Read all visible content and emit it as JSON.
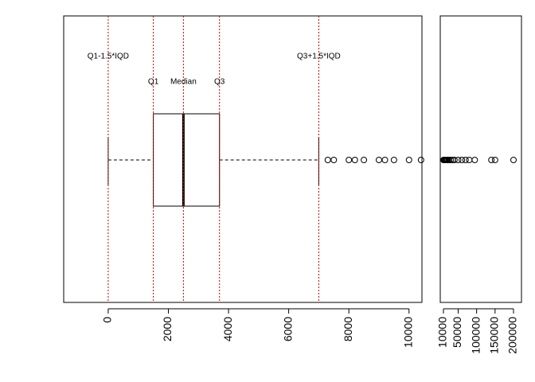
{
  "chart_data": [
    {
      "type": "boxplot",
      "stats": {
        "whisker_low": 0,
        "q1": 1500,
        "median": 2500,
        "q3": 3700,
        "whisker_high": 7000
      },
      "outliers": [
        7300,
        7500,
        8000,
        8200,
        8500,
        9000,
        9200,
        9500,
        10000,
        10400
      ],
      "reference_lines": [
        {
          "label": "Q1-1.5*IQD",
          "value": 0
        },
        {
          "label": "Q1",
          "value": 1500
        },
        {
          "label": "Median",
          "value": 2500
        },
        {
          "label": "Q3",
          "value": 3700
        },
        {
          "label": "Q3+1.5*IQD",
          "value": 7000
        }
      ],
      "reference_color": "#cc0000",
      "xlim": [
        -1480,
        10430
      ],
      "xticks": [
        0,
        2000,
        4000,
        6000,
        8000,
        10000
      ]
    },
    {
      "type": "strip",
      "values": [
        10400,
        11000,
        12000,
        13000,
        14000,
        15000,
        16000,
        17000,
        18000,
        20000,
        22000,
        25000,
        30000,
        35000,
        40000,
        50000,
        60000,
        70000,
        80000,
        95000,
        140000,
        150000,
        200000
      ],
      "xlim": [
        1400,
        221600
      ],
      "xticks": [
        10000,
        50000,
        100000,
        150000,
        200000
      ]
    }
  ]
}
